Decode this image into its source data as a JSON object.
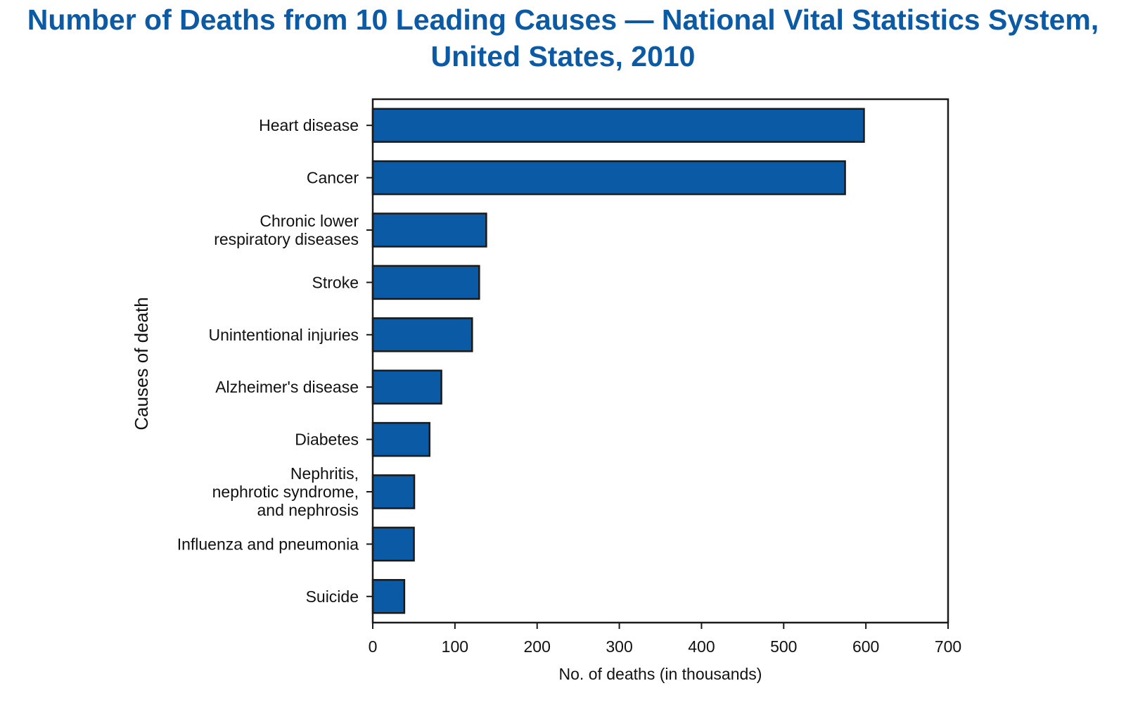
{
  "chart_data": {
    "type": "bar",
    "orientation": "horizontal",
    "title": "Number of Deaths from 10 Leading Causes — National Vital Statistics System, United States, 2010",
    "title_lines": [
      "Number of Deaths from 10 Leading Causes — National Vital Statistics System,",
      "United States, 2010"
    ],
    "xlabel": "No. of deaths (in thousands)",
    "ylabel": "Causes of death",
    "xlim": [
      0,
      700
    ],
    "xticks": [
      "0",
      "100",
      "200",
      "300",
      "400",
      "500",
      "600",
      "700"
    ],
    "grid": false,
    "categories": [
      [
        "Heart disease"
      ],
      [
        "Cancer"
      ],
      [
        "Chronic lower",
        "respiratory diseases"
      ],
      [
        "Stroke"
      ],
      [
        "Unintentional injuries"
      ],
      [
        "Alzheimer's disease"
      ],
      [
        "Diabetes"
      ],
      [
        "Nephritis,",
        "nephrotic syndrome,",
        "and nephrosis"
      ],
      [
        "Influenza and pneumonia"
      ],
      [
        "Suicide"
      ]
    ],
    "values": [
      597.7,
      574.7,
      138.1,
      129.5,
      120.9,
      83.5,
      69.1,
      50.5,
      50.1,
      38.4
    ],
    "bar_color": "#0b5aa6",
    "bar_edge_color": "#1a1a1a"
  }
}
